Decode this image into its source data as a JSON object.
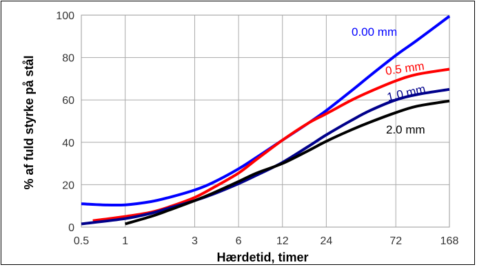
{
  "chart_data": {
    "type": "line",
    "xlabel": "Hærdetid, timer",
    "ylabel": "% af fuld styrke på stål",
    "x_scale": "log",
    "xlim": [
      0.5,
      168
    ],
    "ylim": [
      0,
      100
    ],
    "grid": true,
    "x_ticks": [
      0.5,
      1,
      3,
      6,
      12,
      24,
      72,
      168
    ],
    "x_tick_labels": [
      "0.5",
      "1",
      "3",
      "6",
      "12",
      "24",
      "72",
      "168"
    ],
    "y_ticks": [
      0,
      20,
      40,
      60,
      80,
      100
    ],
    "y_tick_labels": [
      "0",
      "20",
      "40",
      "60",
      "80",
      "100"
    ],
    "series": [
      {
        "name": "0.00 mm",
        "color": "#0000ff",
        "x": [
          0.5,
          0.7,
          1,
          1.5,
          2,
          3,
          4,
          6,
          8,
          12,
          18,
          24,
          36,
          48,
          72,
          100,
          168
        ],
        "y": [
          11,
          10.5,
          10.5,
          12,
          14,
          17.5,
          21,
          27.5,
          33,
          41,
          49,
          55,
          64.5,
          71.5,
          81,
          88,
          99.5
        ]
      },
      {
        "name": "0.5 mm",
        "color": "#ff0000",
        "x": [
          0.6,
          1,
          1.5,
          2,
          3,
          4,
          6,
          8,
          12,
          18,
          24,
          36,
          48,
          72,
          100,
          168
        ],
        "y": [
          3,
          5,
          7,
          9.5,
          14,
          18.5,
          25.5,
          32,
          41,
          49,
          53.5,
          60,
          64,
          69,
          72,
          74.5
        ]
      },
      {
        "name": "1.0 mm",
        "color": "#00008b",
        "x": [
          0.5,
          1,
          1.5,
          2,
          3,
          4,
          6,
          8,
          12,
          18,
          24,
          36,
          48,
          72,
          100,
          168
        ],
        "y": [
          1.5,
          4,
          6.5,
          9,
          12.5,
          15.5,
          20.5,
          24.5,
          30.5,
          38,
          43.5,
          50.5,
          55,
          60,
          62.5,
          65
        ]
      },
      {
        "name": "2.0 mm",
        "color": "#000000",
        "x": [
          1,
          1.5,
          2,
          3,
          4,
          6,
          8,
          12,
          18,
          24,
          36,
          48,
          72,
          100,
          168
        ],
        "y": [
          1.5,
          5,
          8,
          12.5,
          16,
          21.5,
          25.5,
          30,
          36,
          40.5,
          46,
          49.5,
          54,
          57,
          59.5
        ]
      }
    ],
    "annotations": [
      {
        "text": "0.00 mm",
        "color": "#0000ff"
      },
      {
        "text": "0.5 mm",
        "color": "#ff0000"
      },
      {
        "text": "1.0 mm",
        "color": "#00008b"
      },
      {
        "text": "2.0 mm",
        "color": "#000000"
      }
    ]
  }
}
